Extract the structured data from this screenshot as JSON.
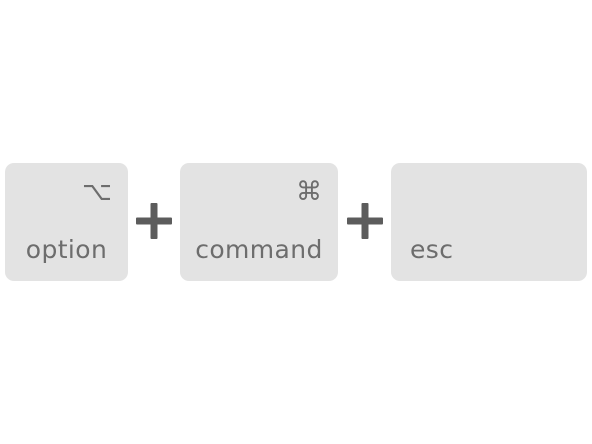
{
  "keys": [
    {
      "label": "option",
      "symbol": "⌥"
    },
    {
      "label": "command",
      "symbol": "⌘"
    },
    {
      "label": "esc",
      "symbol": ""
    }
  ],
  "separator_icon": "plus-icon",
  "colors": {
    "key_background": "#e3e3e3",
    "text": "#6d6d6d",
    "plus": "#5c5c5c"
  }
}
